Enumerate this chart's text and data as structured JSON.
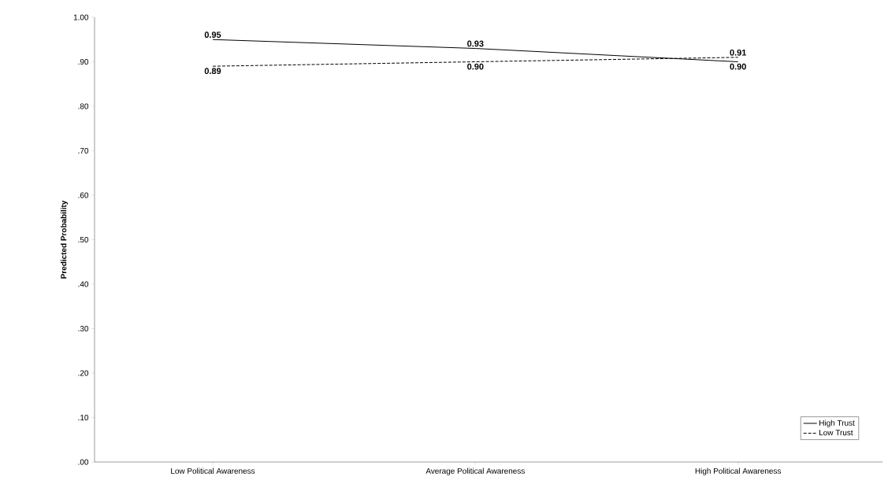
{
  "chart_data": {
    "type": "line",
    "ylabel": "Predicted Probability",
    "categories": [
      "Low Political Awareness",
      "Average Political Awareness",
      "High Political Awareness"
    ],
    "series": [
      {
        "name": "High Trust",
        "color": "#000000",
        "line_style": "solid",
        "values": [
          0.95,
          0.93,
          0.9
        ],
        "value_labels": [
          "0.95",
          "0.93",
          "0.90"
        ]
      },
      {
        "name": "Low Trust",
        "color": "#000000",
        "line_style": "dashed",
        "values": [
          0.89,
          0.9,
          0.91
        ],
        "value_labels": [
          "0.89",
          "0.90",
          "0.91"
        ]
      }
    ],
    "ylim": [
      0,
      1
    ],
    "yticks": [
      {
        "value": 0,
        "label": ".00"
      },
      {
        "value": 0.1,
        "label": ".10"
      },
      {
        "value": 0.2,
        "label": ".20"
      },
      {
        "value": 0.3,
        "label": ".30"
      },
      {
        "value": 0.4,
        "label": ".40"
      },
      {
        "value": 0.5,
        "label": ".50"
      },
      {
        "value": 0.6,
        "label": ".60"
      },
      {
        "value": 0.7,
        "label": ".70"
      },
      {
        "value": 0.8,
        "label": ".80"
      },
      {
        "value": 0.9,
        "label": ".90"
      },
      {
        "value": 1.0,
        "label": "1.00"
      }
    ],
    "legend": "bottom right",
    "marker": "none"
  }
}
